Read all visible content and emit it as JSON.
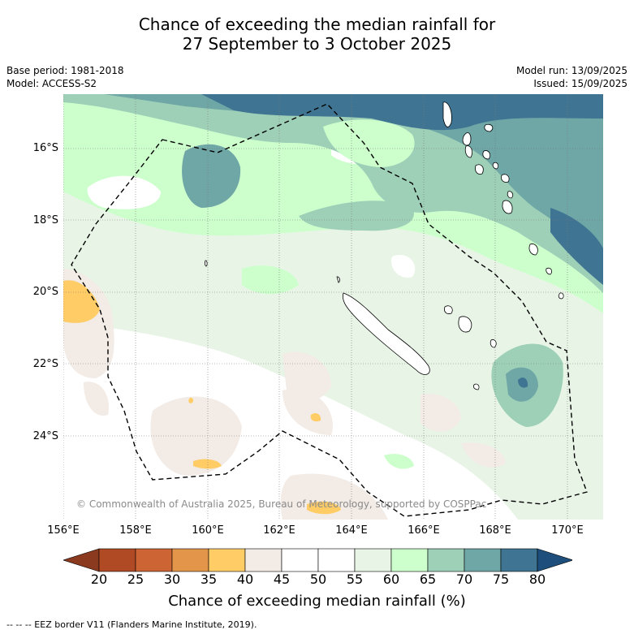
{
  "title": {
    "line1": "Chance of exceeding the median rainfall for",
    "line2": "27 September to 3 October 2025"
  },
  "meta": {
    "base_period": "Base period: 1981-2018",
    "model": "Model: ACCESS-S2",
    "model_run": "Model run: 13/09/2025",
    "issued": "Issued: 15/09/2025"
  },
  "map": {
    "lat_labels": [
      "16°S",
      "18°S",
      "20°S",
      "22°S",
      "24°S"
    ],
    "lon_labels": [
      "156°E",
      "158°E",
      "160°E",
      "162°E",
      "164°E",
      "166°E",
      "168°E",
      "170°E"
    ],
    "copyright": "© Commonwealth of Australia 2025, Bureau of Meteorology, supported by COSPPac",
    "eez_line_color": "#000000"
  },
  "colorbar": {
    "label": "Chance of exceeding median rainfall (%)",
    "ticks": [
      "20",
      "25",
      "30",
      "35",
      "40",
      "45",
      "50",
      "55",
      "60",
      "65",
      "70",
      "75",
      "80"
    ],
    "colors": [
      "#8c3a1f",
      "#b04a24",
      "#cd6433",
      "#e39549",
      "#ffcc66",
      "#f2ebe6",
      "#ffffff",
      "#ffffff",
      "#e8f5e6",
      "#ccffcc",
      "#9ed0b8",
      "#6fa6a6",
      "#3f7592",
      "#1d4e7c"
    ]
  },
  "footnote": "--  --  -- EEZ border V11 (Flanders Marine Institute, 2019)."
}
